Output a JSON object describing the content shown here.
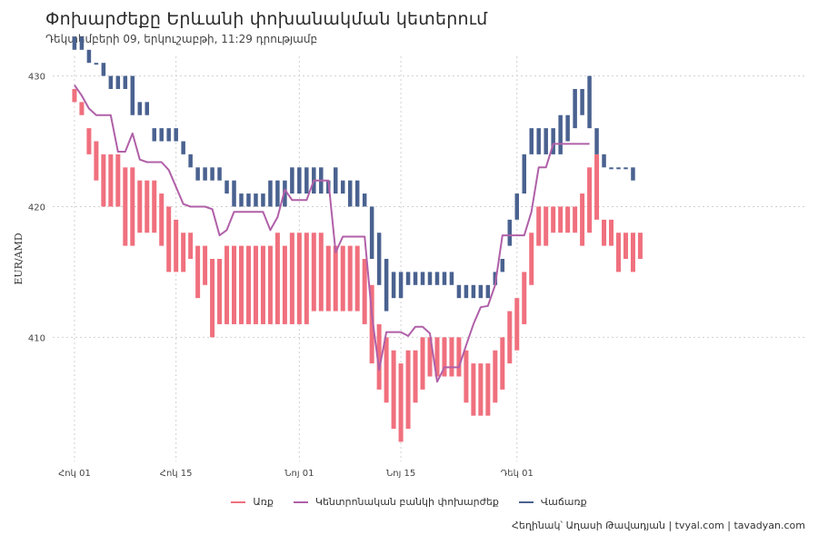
{
  "title": "Փոխարժեքը Երևանի փոխանակման կետերում",
  "subtitle": "Դեկտեմբերի 09, երկուշաբթի, 11:29 դրությամբ",
  "caption": "Հեղինակ՝ Աղասի Թավադյան  |  tvyal.com  |  tavadyan.com",
  "colors": {
    "buy": "#f0707e",
    "central": "#b060a8",
    "sell": "#4a6290",
    "grid": "#d0d0d0"
  },
  "chart_data": {
    "type": "line",
    "ylabel": "EUR/AMD",
    "ylim": [
      400.5,
      431.5
    ],
    "yticks": [
      410,
      420,
      430
    ],
    "xlim": [
      -3,
      101
    ],
    "x_unit": "day index starting Oct 01",
    "xticks": [
      {
        "x": 0,
        "label": "Հոկ 01"
      },
      {
        "x": 14,
        "label": "Հոկ 15"
      },
      {
        "x": 31,
        "label": "Նոյ 01"
      },
      {
        "x": 45,
        "label": "Նոյ 15"
      },
      {
        "x": 61,
        "label": "Դեկ 01"
      }
    ],
    "legend": [
      "Առք",
      "Կենտրոնական բանկի փոխարժեք",
      "Վաճառք"
    ],
    "series": [
      {
        "name": "Առք",
        "key": "buy",
        "style": "range-bars",
        "ranges": [
          [
            428,
            429
          ],
          [
            427,
            428
          ],
          [
            424,
            426
          ],
          [
            422,
            425
          ],
          [
            420,
            424
          ],
          [
            420,
            424
          ],
          [
            420,
            424
          ],
          [
            417,
            423
          ],
          [
            417,
            423
          ],
          [
            418,
            422
          ],
          [
            418,
            422
          ],
          [
            418,
            422
          ],
          [
            417,
            421
          ],
          [
            415,
            420
          ],
          [
            415,
            419
          ],
          [
            415,
            418
          ],
          [
            416,
            418
          ],
          [
            413,
            417
          ],
          [
            414,
            417
          ],
          [
            410,
            416
          ],
          [
            411,
            416
          ],
          [
            411,
            417
          ],
          [
            411,
            417
          ],
          [
            411,
            417
          ],
          [
            411,
            417
          ],
          [
            411,
            417
          ],
          [
            411,
            417
          ],
          [
            411,
            417
          ],
          [
            411,
            418
          ],
          [
            411,
            417
          ],
          [
            411,
            418
          ],
          [
            411,
            418
          ],
          [
            411,
            418
          ],
          [
            412,
            418
          ],
          [
            412,
            418
          ],
          [
            412,
            417
          ],
          [
            412,
            417
          ],
          [
            412,
            417
          ],
          [
            412,
            417
          ],
          [
            412,
            417
          ],
          [
            411,
            416
          ],
          [
            408,
            414
          ],
          [
            406,
            411
          ],
          [
            405,
            410
          ],
          [
            403,
            409
          ],
          [
            402,
            408
          ],
          [
            403,
            409
          ],
          [
            405,
            409
          ],
          [
            406,
            410
          ],
          [
            407,
            410
          ],
          [
            407,
            410
          ],
          [
            407,
            410
          ],
          [
            407,
            410
          ],
          [
            407,
            410
          ],
          [
            405,
            409
          ],
          [
            404,
            408
          ],
          [
            404,
            408
          ],
          [
            404,
            408
          ],
          [
            405,
            409
          ],
          [
            406,
            410
          ],
          [
            408,
            412
          ],
          [
            409,
            413
          ],
          [
            411,
            415
          ],
          [
            414,
            418
          ],
          [
            417,
            420
          ],
          [
            417,
            420
          ],
          [
            418,
            420
          ],
          [
            418,
            420
          ],
          [
            418,
            420
          ],
          [
            418,
            420
          ],
          [
            417,
            421
          ],
          [
            418,
            423
          ],
          [
            419,
            424
          ],
          [
            417,
            419
          ],
          [
            417,
            419
          ],
          [
            415,
            418
          ],
          [
            416,
            418
          ],
          [
            415,
            418
          ],
          [
            416,
            418
          ]
        ]
      },
      {
        "name": "Կենտրոնական բանկի փոխարժեք",
        "key": "central",
        "style": "line",
        "x": [
          0,
          1,
          2,
          3,
          4,
          5,
          6,
          7,
          8,
          9,
          10,
          11,
          12,
          13,
          14,
          15,
          16,
          17,
          18,
          19,
          20,
          21,
          22,
          23,
          24,
          25,
          26,
          27,
          28,
          29,
          30,
          31,
          32,
          33,
          34,
          35,
          36,
          37,
          38,
          39,
          40,
          41,
          42,
          43,
          44,
          45,
          46,
          47,
          48,
          49,
          50,
          51,
          52,
          53,
          54,
          55,
          56,
          57,
          58,
          59,
          60,
          61,
          62,
          63,
          64,
          65,
          66,
          67,
          68,
          69,
          70,
          71
        ],
        "values": [
          429.3,
          428.5,
          427.5,
          427.0,
          427.0,
          427.0,
          424.2,
          424.2,
          425.6,
          423.6,
          423.4,
          423.4,
          423.4,
          422.8,
          421.5,
          420.2,
          420.0,
          420.0,
          420.0,
          419.8,
          417.8,
          418.2,
          419.6,
          419.6,
          419.6,
          419.6,
          419.6,
          418.2,
          419.2,
          421.3,
          420.5,
          420.5,
          420.5,
          422.0,
          422.0,
          422.0,
          416.5,
          417.7,
          417.7,
          417.7,
          417.7,
          411.7,
          407.5,
          410.4,
          410.4,
          410.4,
          410.1,
          410.8,
          410.8,
          410.3,
          406.6,
          407.7,
          407.7,
          407.7,
          409.4,
          411.0,
          412.3,
          412.4,
          414.0,
          417.8,
          417.8,
          417.8,
          417.8,
          419.6,
          423.0,
          423.0,
          424.8,
          424.8,
          424.8,
          424.8,
          424.8,
          424.8
        ]
      },
      {
        "name": "Վաճառք",
        "key": "sell",
        "style": "range-bars",
        "ranges": [
          [
            432,
            433
          ],
          [
            432,
            433
          ],
          [
            431,
            432
          ],
          [
            431,
            431
          ],
          [
            430,
            431
          ],
          [
            429,
            430
          ],
          [
            429,
            430
          ],
          [
            429,
            430
          ],
          [
            427,
            430
          ],
          [
            427,
            428
          ],
          [
            427,
            428
          ],
          [
            425,
            426
          ],
          [
            425,
            426
          ],
          [
            425,
            426
          ],
          [
            425,
            426
          ],
          [
            424,
            425
          ],
          [
            423,
            424
          ],
          [
            422,
            423
          ],
          [
            422,
            423
          ],
          [
            422,
            423
          ],
          [
            422,
            423
          ],
          [
            421,
            422
          ],
          [
            420,
            422
          ],
          [
            420,
            421
          ],
          [
            420,
            421
          ],
          [
            420,
            421
          ],
          [
            420,
            421
          ],
          [
            420,
            422
          ],
          [
            420,
            422
          ],
          [
            420,
            422
          ],
          [
            421,
            423
          ],
          [
            421,
            423
          ],
          [
            421,
            423
          ],
          [
            421,
            423
          ],
          [
            421,
            423
          ],
          [
            421,
            422
          ],
          [
            421,
            423
          ],
          [
            421,
            422
          ],
          [
            420,
            422
          ],
          [
            420,
            422
          ],
          [
            420,
            421
          ],
          [
            416,
            420
          ],
          [
            414,
            418
          ],
          [
            412,
            416
          ],
          [
            413,
            415
          ],
          [
            413,
            415
          ],
          [
            414,
            415
          ],
          [
            414,
            415
          ],
          [
            414,
            415
          ],
          [
            414,
            415
          ],
          [
            414,
            415
          ],
          [
            414,
            415
          ],
          [
            414,
            415
          ],
          [
            413,
            414
          ],
          [
            413,
            414
          ],
          [
            413,
            414
          ],
          [
            413,
            414
          ],
          [
            413,
            414
          ],
          [
            414,
            415
          ],
          [
            415,
            416
          ],
          [
            417,
            419
          ],
          [
            419,
            421
          ],
          [
            421,
            424
          ],
          [
            424,
            426
          ],
          [
            424,
            426
          ],
          [
            424,
            426
          ],
          [
            424,
            426
          ],
          [
            424,
            427
          ],
          [
            425,
            427
          ],
          [
            426,
            429
          ],
          [
            427,
            429
          ],
          [
            426,
            430
          ],
          [
            424,
            426
          ],
          [
            423,
            424
          ],
          [
            423,
            423
          ],
          [
            423,
            423
          ],
          [
            423,
            423
          ],
          [
            422,
            423
          ]
        ]
      }
    ]
  }
}
